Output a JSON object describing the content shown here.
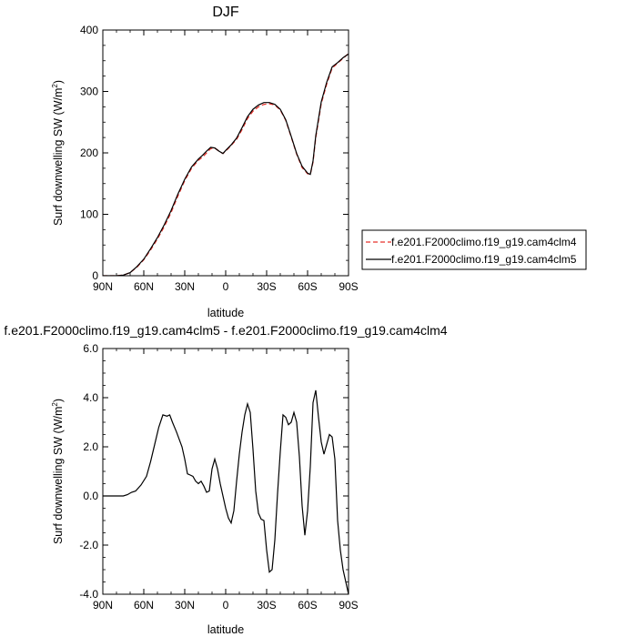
{
  "chart_data": [
    {
      "type": "line",
      "title": "DJF",
      "xlabel": "latitude",
      "ylabel": "Surf downwelling SW (W/m²)",
      "ylabel_parts": {
        "main": "Surf downwelling SW (W/m",
        "sup": "2",
        "end": ")"
      },
      "x_ticks": [
        {
          "value": 90,
          "label": "90N"
        },
        {
          "value": 60,
          "label": "60N"
        },
        {
          "value": 30,
          "label": "30N"
        },
        {
          "value": 0,
          "label": "0"
        },
        {
          "value": -30,
          "label": "30S"
        },
        {
          "value": -60,
          "label": "60S"
        },
        {
          "value": -90,
          "label": "90S"
        }
      ],
      "y_ticks": [
        {
          "value": 0,
          "label": "0"
        },
        {
          "value": 100,
          "label": "100"
        },
        {
          "value": 200,
          "label": "200"
        },
        {
          "value": 300,
          "label": "300"
        },
        {
          "value": 400,
          "label": "400"
        }
      ],
      "xlim": [
        90,
        -90
      ],
      "ylim": [
        0,
        400
      ],
      "grid": false,
      "legend_position": "right",
      "x": [
        90,
        85,
        80,
        75,
        70,
        65,
        60,
        55,
        50,
        45,
        40,
        35,
        30,
        25,
        20,
        17,
        14,
        11,
        8,
        5,
        2,
        0,
        -4,
        -8,
        -12,
        -16,
        -20,
        -24,
        -28,
        -32,
        -36,
        -40,
        -44,
        -48,
        -52,
        -56,
        -60,
        -62,
        -64,
        -66,
        -70,
        -74,
        -78,
        -82,
        -86,
        -90
      ],
      "series": [
        {
          "name": "f.e201.F2000climo.f19_g19.cam4clm4",
          "color": "#e8322b",
          "dash": true,
          "values": [
            0,
            0,
            0,
            1,
            5,
            14,
            26,
            42,
            60,
            80,
            103,
            130,
            155,
            175,
            188,
            193,
            200,
            207,
            208,
            203,
            199,
            203,
            212,
            222,
            238,
            256,
            268,
            275,
            279,
            280,
            278,
            270,
            253,
            226,
            198,
            176,
            166,
            165,
            185,
            225,
            280,
            312,
            338,
            346,
            354,
            362
          ]
        },
        {
          "name": "f.e201.F2000climo.f19_g19.cam4clm5",
          "color": "#000000",
          "dash": false,
          "values": [
            0,
            0,
            0,
            1,
            5,
            15,
            27,
            44,
            62,
            83,
            106,
            133,
            157,
            177,
            190,
            196,
            203,
            209,
            208,
            203,
            199,
            204,
            213,
            224,
            241,
            259,
            271,
            278,
            282,
            282,
            279,
            271,
            254,
            227,
            199,
            178,
            167,
            165,
            187,
            228,
            283,
            315,
            340,
            347,
            355,
            361
          ]
        }
      ]
    },
    {
      "type": "line",
      "title": "f.e201.F2000climo.f19_g19.cam4clm5 - f.e201.F2000climo.f19_g19.cam4clm4",
      "xlabel": "latitude",
      "ylabel": "Surf downwelling SW (W/m²)",
      "ylabel_parts": {
        "main": "Surf downwelling SW (W/m",
        "sup": "2",
        "end": ")"
      },
      "x_ticks": [
        {
          "value": 90,
          "label": "90N"
        },
        {
          "value": 60,
          "label": "60N"
        },
        {
          "value": 30,
          "label": "30N"
        },
        {
          "value": 0,
          "label": "0"
        },
        {
          "value": -30,
          "label": "30S"
        },
        {
          "value": -60,
          "label": "60S"
        },
        {
          "value": -90,
          "label": "90S"
        }
      ],
      "y_ticks": [
        {
          "value": -4,
          "label": "-4.0"
        },
        {
          "value": -2,
          "label": "-2.0"
        },
        {
          "value": 0,
          "label": "0.0"
        },
        {
          "value": 2,
          "label": "2.0"
        },
        {
          "value": 4,
          "label": "4.0"
        },
        {
          "value": 6,
          "label": "6.0"
        }
      ],
      "xlim": [
        90,
        -90
      ],
      "ylim": [
        -4,
        6
      ],
      "grid": false,
      "series": [
        {
          "color": "#000000",
          "x": [
            90,
            85,
            80,
            75,
            72,
            69,
            66,
            62,
            58,
            55,
            52,
            49,
            46,
            43,
            41,
            39,
            36,
            34,
            32,
            30,
            28,
            26,
            24,
            22,
            20,
            18,
            16,
            14,
            12,
            10,
            8,
            6,
            4,
            2,
            0,
            -2,
            -4,
            -6,
            -8,
            -10,
            -12,
            -14,
            -16,
            -18,
            -20,
            -22,
            -24,
            -26,
            -28,
            -30,
            -32,
            -34,
            -36,
            -38,
            -40,
            -42,
            -44,
            -46,
            -48,
            -50,
            -52,
            -54,
            -56,
            -58,
            -60,
            -62,
            -64,
            -66,
            -68,
            -70,
            -72,
            -74,
            -76,
            -78,
            -80,
            -82,
            -84,
            -86,
            -88,
            -90
          ],
          "values": [
            0,
            0,
            0,
            0,
            0.05,
            0.15,
            0.2,
            0.45,
            0.8,
            1.4,
            2.1,
            2.8,
            3.3,
            3.25,
            3.3,
            3.0,
            2.6,
            2.3,
            2.0,
            1.5,
            0.9,
            0.85,
            0.8,
            0.6,
            0.5,
            0.6,
            0.4,
            0.15,
            0.2,
            1.1,
            1.5,
            1.1,
            0.5,
            0.0,
            -0.5,
            -0.9,
            -1.1,
            -0.6,
            0.6,
            1.7,
            2.6,
            3.3,
            3.75,
            3.4,
            1.9,
            0.2,
            -0.7,
            -0.95,
            -1.0,
            -2.2,
            -3.1,
            -3.0,
            -1.8,
            0.1,
            1.8,
            3.3,
            3.2,
            2.9,
            3.0,
            3.4,
            3.0,
            1.6,
            -0.4,
            -1.6,
            -0.6,
            1.2,
            3.8,
            4.3,
            3.2,
            2.2,
            1.7,
            2.1,
            2.5,
            2.4,
            1.5,
            -1.0,
            -2.2,
            -3.0,
            -3.5,
            -4.0
          ]
        }
      ]
    }
  ]
}
